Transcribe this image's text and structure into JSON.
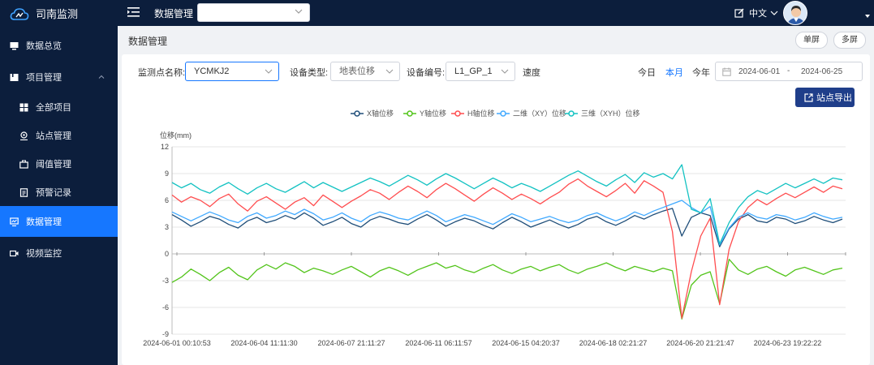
{
  "app": {
    "name": "司南监测"
  },
  "topbar": {
    "section_title": "数据管理",
    "project_select_value": "",
    "language": "中文"
  },
  "sidebar": {
    "items": [
      {
        "label": "数据总览",
        "icon": "monitor-icon"
      },
      {
        "label": "项目管理",
        "icon": "folder-icon"
      },
      {
        "label": "全部项目",
        "icon": "grid-icon"
      },
      {
        "label": "站点管理",
        "icon": "location-icon"
      },
      {
        "label": "阈值管理",
        "icon": "briefcase-icon"
      },
      {
        "label": "预警记录",
        "icon": "document-icon"
      },
      {
        "label": "数据管理",
        "icon": "data-screen-icon"
      },
      {
        "label": "视频监控",
        "icon": "video-icon"
      }
    ]
  },
  "main": {
    "page_title": "数据管理",
    "single_screen": "单屏",
    "multi_screen": "多屏"
  },
  "filters": {
    "point_label": "监测点名称:",
    "point_value": "YCMKJ2",
    "device_type_label": "设备类型:",
    "device_type_value": "地表位移",
    "device_code_label": "设备编号:",
    "device_code_value": "L1_GP_1",
    "speed_label": "速度",
    "today": "今日",
    "this_month": "本月",
    "this_year": "今年",
    "date_start": "2024-06-01",
    "date_sep": "-",
    "date_end": "2024-06-25",
    "export_label": "站点导出"
  },
  "colors": {
    "accent": "#1677ff",
    "sidebar_bg": "#0c1e3c",
    "export_bg": "#1f3e8a"
  },
  "chart_data": {
    "type": "line",
    "ylabel": "位移(mm)",
    "ylim": [
      -9,
      12
    ],
    "yticks": [
      -9,
      -6,
      -3,
      0,
      3,
      6,
      9,
      12
    ],
    "x_tick_labels": [
      "2024-06-01 00:10:53",
      "2024-06-04 11:11:30",
      "2024-06-07 21:11:27",
      "2024-06-11 06:11:57",
      "2024-06-15 04:20:37",
      "2024-06-18 02:21:27",
      "2024-06-20 21:21:47",
      "2024-06-23 19:22:22"
    ],
    "grid": true,
    "legend_placement": "top-center",
    "series": [
      {
        "name": "X轴位移",
        "color": "#1f4e79",
        "values": [
          4.4,
          3.8,
          3.1,
          3.6,
          4.2,
          3.9,
          3.3,
          2.9,
          3.7,
          4.1,
          3.5,
          3.8,
          4.3,
          3.9,
          4.6,
          4.0,
          3.2,
          3.6,
          4.1,
          3.4,
          3.0,
          3.8,
          4.2,
          3.9,
          3.5,
          3.3,
          3.9,
          4.4,
          3.8,
          3.1,
          3.6,
          4.0,
          3.7,
          3.2,
          2.8,
          3.5,
          4.1,
          3.6,
          3.0,
          3.4,
          3.8,
          3.3,
          2.9,
          3.3,
          3.9,
          4.2,
          3.6,
          3.2,
          3.7,
          4.3,
          3.9,
          4.4,
          4.8,
          5.1,
          2.0,
          4.1,
          4.6,
          4.3,
          0.8,
          2.8,
          3.9,
          4.4,
          3.7,
          3.5,
          4.1,
          3.9,
          3.4,
          3.7,
          4.2,
          3.8,
          3.5,
          3.9
        ]
      },
      {
        "name": "Y轴位移",
        "color": "#52c41a",
        "values": [
          -3.2,
          -2.6,
          -1.7,
          -2.3,
          -3.0,
          -2.1,
          -1.5,
          -2.4,
          -2.9,
          -1.8,
          -1.2,
          -1.7,
          -1.0,
          -1.4,
          -2.1,
          -1.6,
          -1.9,
          -2.3,
          -1.8,
          -1.4,
          -2.0,
          -2.6,
          -1.9,
          -1.5,
          -1.9,
          -2.4,
          -1.8,
          -1.4,
          -1.0,
          -1.6,
          -1.3,
          -1.8,
          -2.1,
          -1.6,
          -1.2,
          -1.8,
          -2.2,
          -1.7,
          -1.4,
          -1.9,
          -1.5,
          -1.2,
          -1.8,
          -2.2,
          -1.7,
          -1.4,
          -1.0,
          -1.5,
          -1.9,
          -1.4,
          -1.7,
          -2.0,
          -1.6,
          -1.9,
          -7.3,
          -3.5,
          -2.4,
          -2.0,
          -5.6,
          -0.6,
          -1.8,
          -2.3,
          -1.7,
          -1.4,
          -2.0,
          -2.5,
          -1.8,
          -1.5,
          -1.9,
          -2.3,
          -1.8,
          -1.6
        ]
      },
      {
        "name": "H轴位移",
        "color": "#ff4d4f",
        "values": [
          6.6,
          5.8,
          6.4,
          6.0,
          5.3,
          6.2,
          6.7,
          5.6,
          4.8,
          5.9,
          6.4,
          5.7,
          5.0,
          5.8,
          6.3,
          5.4,
          6.6,
          5.9,
          5.2,
          5.9,
          6.5,
          7.2,
          6.8,
          6.1,
          6.9,
          7.6,
          7.0,
          6.3,
          7.2,
          7.9,
          7.3,
          6.6,
          5.9,
          6.7,
          7.4,
          6.8,
          6.1,
          6.7,
          6.2,
          5.6,
          6.3,
          6.9,
          7.8,
          8.4,
          7.6,
          7.0,
          6.4,
          7.1,
          7.9,
          6.8,
          8.2,
          7.6,
          6.9,
          2.5,
          -7.2,
          -2.0,
          2.0,
          4.0,
          -5.7,
          0.5,
          3.6,
          5.2,
          6.1,
          5.5,
          6.2,
          6.8,
          6.3,
          6.9,
          7.5,
          6.9,
          7.6,
          7.3
        ]
      },
      {
        "name": "二维（XY）位移",
        "color": "#40a9ff",
        "values": [
          4.7,
          4.2,
          3.7,
          4.2,
          4.7,
          4.3,
          3.8,
          3.5,
          4.2,
          4.6,
          4.0,
          4.3,
          4.8,
          4.4,
          5.0,
          4.5,
          3.8,
          4.1,
          4.6,
          4.0,
          3.6,
          4.3,
          4.7,
          4.4,
          4.0,
          3.8,
          4.3,
          4.8,
          4.3,
          3.6,
          4.0,
          4.4,
          4.1,
          3.7,
          3.3,
          3.9,
          4.5,
          4.1,
          3.6,
          3.9,
          4.2,
          3.8,
          3.5,
          3.8,
          4.3,
          4.6,
          4.1,
          3.7,
          4.1,
          4.7,
          4.3,
          4.8,
          5.2,
          5.6,
          6.0,
          5.2,
          4.6,
          5.3,
          1.0,
          2.9,
          4.1,
          4.6,
          4.1,
          3.9,
          4.4,
          4.2,
          3.8,
          4.1,
          4.6,
          4.2,
          3.9,
          4.1
        ]
      },
      {
        "name": "三维（XYH）位移",
        "color": "#13c2c2",
        "values": [
          8.0,
          7.4,
          7.9,
          7.2,
          6.8,
          7.5,
          8.0,
          7.3,
          6.7,
          7.4,
          7.9,
          7.3,
          6.9,
          7.5,
          8.1,
          7.4,
          8.0,
          7.5,
          7.0,
          7.5,
          8.0,
          8.5,
          8.1,
          7.6,
          8.2,
          8.8,
          8.3,
          7.7,
          8.4,
          9.0,
          8.5,
          7.9,
          7.3,
          7.9,
          8.5,
          8.0,
          7.4,
          7.9,
          7.5,
          7.0,
          7.6,
          8.2,
          8.8,
          9.3,
          8.7,
          8.1,
          7.6,
          8.3,
          8.9,
          8.0,
          9.1,
          8.6,
          9.0,
          8.4,
          10.0,
          5.0,
          4.6,
          6.2,
          1.1,
          3.5,
          5.2,
          6.4,
          7.1,
          6.7,
          7.3,
          7.9,
          7.4,
          7.9,
          8.4,
          7.9,
          8.5,
          8.3
        ]
      }
    ]
  }
}
